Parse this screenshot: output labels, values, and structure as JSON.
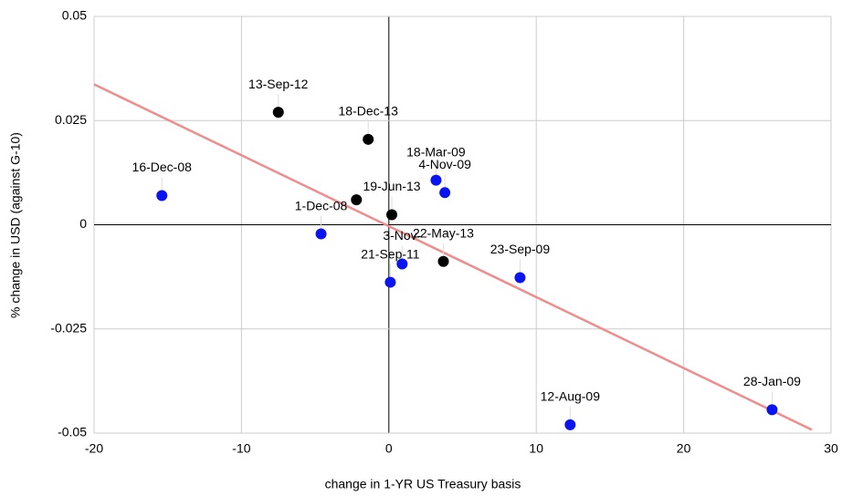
{
  "chart_data": {
    "type": "scatter",
    "x_label": "change in 1-YR US Treasury basis",
    "y_label": "% change in USD (against G-10)",
    "xlim": [
      -20,
      30
    ],
    "xticks": [
      -20,
      -10,
      0,
      10,
      20,
      30
    ],
    "ylim": [
      -0.05,
      0.05
    ],
    "yticks": [
      -0.05,
      -0.025,
      0,
      0.025,
      0.05
    ],
    "grid": true,
    "series": [
      {
        "color": "#0a14f0",
        "x": [
          -15.4,
          -4.6,
          3.2,
          3.8,
          0.9,
          0.1,
          8.9,
          12.3,
          26
        ],
        "values": [
          0.007,
          -0.0022,
          0.0107,
          0.0077,
          -0.0094,
          -0.0138,
          -0.0127,
          -0.048,
          -0.0444
        ],
        "labels": [
          "16-Dec-08",
          "1-Dec-08",
          "18-Mar-09",
          "4-Nov-09",
          "3-Nov-",
          "21-Sep-11",
          "23-Sep-09",
          "12-Aug-09",
          "28-Jan-09"
        ]
      },
      {
        "color": "#000000",
        "x": [
          -7.5,
          -1.4,
          -2.2,
          0.2,
          3.7
        ],
        "values": [
          0.027,
          0.0205,
          0.006,
          0.0024,
          -0.0088
        ],
        "labels": [
          "13-Sep-12",
          "18-Dec-13",
          null,
          "19-Jun-13",
          "22-May-13"
        ]
      }
    ],
    "trendline": {
      "color": "#f08c8c",
      "x": [
        -20,
        28.7
      ],
      "values": [
        0.0337,
        -0.0492
      ]
    }
  }
}
